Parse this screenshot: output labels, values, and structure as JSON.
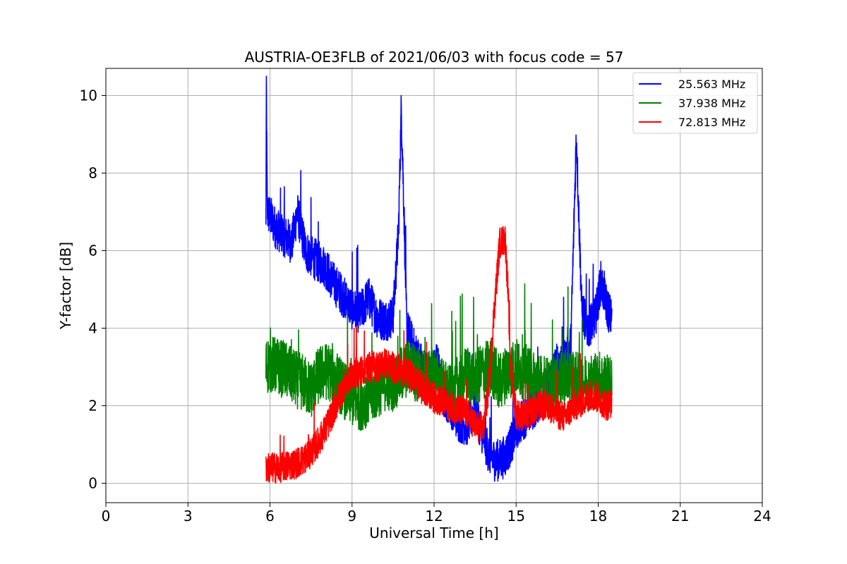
{
  "chart_data": {
    "type": "line",
    "title": "AUSTRIA-OE3FLB of 2021/06/03 with focus code = 57",
    "xlabel": "Universal Time [h]",
    "ylabel": "Y-factor [dB]",
    "xlim": [
      0,
      24
    ],
    "ylim": [
      -0.5,
      10.7
    ],
    "xticks": [
      0,
      3,
      6,
      9,
      12,
      15,
      18,
      21,
      24
    ],
    "yticks": [
      0,
      2,
      4,
      6,
      8,
      10
    ],
    "grid": true,
    "legend_position": "top-right",
    "series": [
      {
        "name": "25.563 MHz",
        "color": "#0000ff",
        "x": [
          5.85,
          5.87,
          5.9,
          6.0,
          6.2,
          6.5,
          6.8,
          7.0,
          7.3,
          7.6,
          8.0,
          8.3,
          8.6,
          9.0,
          9.3,
          9.6,
          9.9,
          10.2,
          10.5,
          10.7,
          10.8,
          10.9,
          11.0,
          11.3,
          11.6,
          11.9,
          12.1,
          12.3,
          12.6,
          12.9,
          13.2,
          13.5,
          13.8,
          14.0,
          14.2,
          14.4,
          14.6,
          14.8,
          15.0,
          15.3,
          15.6,
          15.9,
          16.2,
          16.5,
          16.8,
          17.0,
          17.2,
          17.4,
          17.6,
          17.9,
          18.1,
          18.3,
          18.5
        ],
        "values": [
          6.5,
          10.2,
          7.0,
          6.9,
          6.6,
          6.4,
          6.2,
          7.0,
          6.0,
          5.8,
          5.6,
          5.2,
          4.9,
          4.5,
          4.4,
          4.8,
          4.3,
          4.2,
          4.3,
          6.5,
          9.7,
          7.0,
          4.0,
          3.4,
          3.0,
          2.7,
          3.2,
          2.3,
          2.0,
          1.6,
          1.5,
          1.9,
          1.2,
          0.8,
          0.6,
          0.6,
          0.7,
          1.0,
          1.4,
          1.7,
          1.9,
          2.2,
          2.6,
          3.1,
          3.2,
          3.6,
          9.0,
          4.5,
          4.0,
          4.3,
          5.2,
          4.6,
          4.2
        ],
        "noise": 0.55
      },
      {
        "name": "37.938 MHz",
        "color": "#008000",
        "x": [
          5.85,
          6.0,
          6.3,
          6.6,
          6.9,
          7.2,
          7.5,
          7.8,
          8.1,
          8.4,
          8.7,
          9.0,
          9.3,
          9.6,
          9.9,
          10.2,
          10.5,
          10.8,
          11.1,
          11.4,
          11.7,
          12.0,
          12.3,
          12.6,
          12.9,
          13.2,
          13.5,
          13.8,
          14.1,
          14.4,
          14.7,
          15.0,
          15.3,
          15.6,
          15.9,
          16.2,
          16.5,
          16.8,
          17.1,
          17.4,
          17.7,
          18.0,
          18.3,
          18.5
        ],
        "values": [
          3.0,
          3.1,
          3.0,
          2.9,
          2.7,
          2.6,
          2.4,
          2.8,
          2.9,
          2.7,
          2.4,
          2.2,
          2.1,
          2.2,
          2.4,
          2.6,
          2.6,
          2.8,
          3.0,
          2.8,
          2.7,
          2.8,
          2.5,
          2.3,
          2.6,
          2.8,
          2.7,
          2.9,
          3.0,
          2.6,
          2.9,
          3.0,
          2.9,
          2.7,
          2.6,
          2.5,
          2.6,
          2.8,
          2.7,
          2.6,
          2.6,
          2.7,
          2.6,
          2.5
        ],
        "noise": 0.75
      },
      {
        "name": "72.813 MHz",
        "color": "#ff0000",
        "x": [
          5.85,
          6.0,
          6.3,
          6.6,
          6.9,
          7.2,
          7.5,
          7.8,
          8.1,
          8.4,
          8.7,
          9.0,
          9.3,
          9.6,
          9.9,
          10.2,
          10.5,
          10.8,
          11.1,
          11.4,
          11.7,
          12.0,
          12.3,
          12.6,
          12.9,
          13.2,
          13.5,
          13.8,
          14.0,
          14.2,
          14.4,
          14.6,
          14.7,
          14.8,
          15.0,
          15.3,
          15.6,
          15.9,
          16.2,
          16.5,
          16.8,
          17.1,
          17.4,
          17.7,
          18.0,
          18.3,
          18.5
        ],
        "values": [
          0.4,
          0.4,
          0.4,
          0.45,
          0.5,
          0.6,
          0.8,
          1.1,
          1.5,
          2.0,
          2.5,
          2.8,
          2.9,
          3.0,
          3.0,
          3.1,
          3.0,
          2.9,
          2.8,
          2.6,
          2.4,
          2.2,
          2.1,
          2.0,
          1.9,
          1.8,
          1.5,
          1.4,
          2.5,
          4.5,
          6.2,
          6.3,
          5.0,
          3.0,
          1.8,
          1.7,
          1.9,
          2.0,
          2.0,
          1.8,
          1.7,
          2.0,
          2.1,
          2.3,
          2.2,
          2.0,
          2.1
        ],
        "noise": 0.4
      }
    ]
  }
}
